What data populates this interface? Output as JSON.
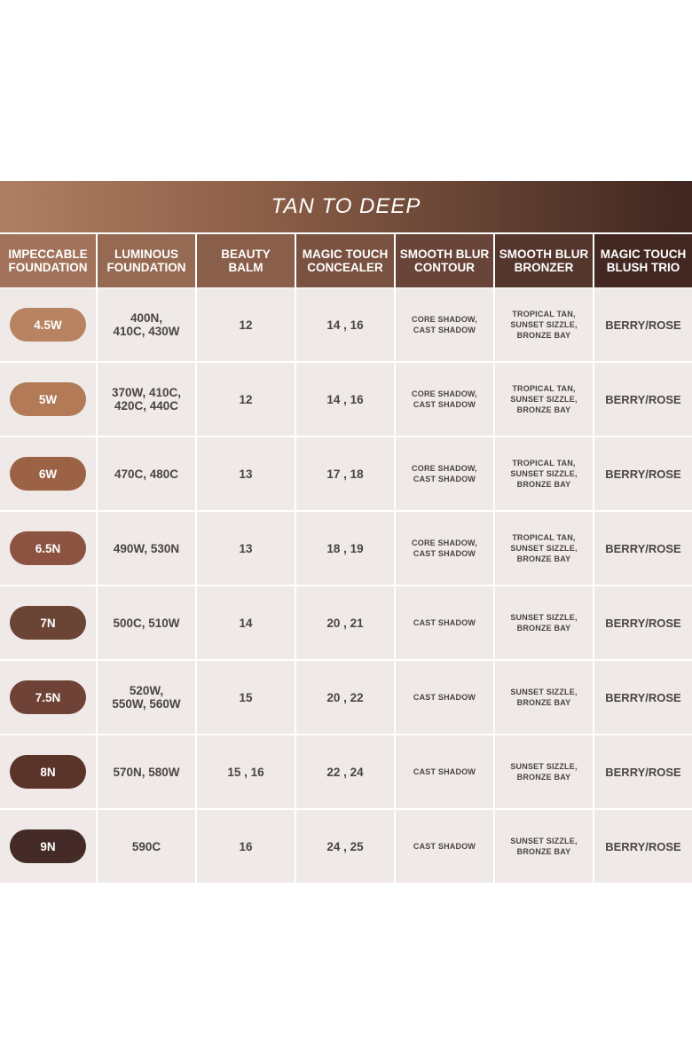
{
  "banner": {
    "title": "TAN TO DEEP"
  },
  "columns": [
    {
      "label": "IMPECCABLE\nFOUNDATION",
      "color": "#a2735a"
    },
    {
      "label": "LUMINOUS\nFOUNDATION",
      "color": "#966a52"
    },
    {
      "label": "BEAUTY\nBALM",
      "color": "#895f4b"
    },
    {
      "label": "MAGIC TOUCH\nCONCEALER",
      "color": "#7a5241"
    },
    {
      "label": "SMOOTH BLUR\nCONTOUR",
      "color": "#684538"
    },
    {
      "label": "SMOOTH BLUR\nBRONZER",
      "color": "#55362c"
    },
    {
      "label": "MAGIC TOUCH\nBLUSH TRIO",
      "color": "#432822"
    }
  ],
  "rows": [
    {
      "shade": "4.5W",
      "shade_color": "#b88361",
      "luminous": "400N,\n410C, 430W",
      "balm": "12",
      "concealer": "14 , 16",
      "contour": "CORE SHADOW,\nCAST SHADOW",
      "bronzer": "TROPICAL TAN,\nSUNSET SIZZLE,\nBRONZE BAY",
      "blush": "BERRY/ROSE"
    },
    {
      "shade": "5W",
      "shade_color": "#b27a57",
      "luminous": "370W, 410C,\n420C, 440C",
      "balm": "12",
      "concealer": "14 , 16",
      "contour": "CORE SHADOW,\nCAST SHADOW",
      "bronzer": "TROPICAL TAN,\nSUNSET SIZZLE,\nBRONZE BAY",
      "blush": "BERRY/ROSE"
    },
    {
      "shade": "6W",
      "shade_color": "#9c6245",
      "luminous": "470C, 480C",
      "balm": "13",
      "concealer": "17 , 18",
      "contour": "CORE SHADOW,\nCAST SHADOW",
      "bronzer": "TROPICAL TAN,\nSUNSET SIZZLE,\nBRONZE BAY",
      "blush": "BERRY/ROSE"
    },
    {
      "shade": "6.5N",
      "shade_color": "#8c5340",
      "luminous": "490W, 530N",
      "balm": "13",
      "concealer": "18 , 19",
      "contour": "CORE SHADOW,\nCAST SHADOW",
      "bronzer": "TROPICAL TAN,\nSUNSET SIZZLE,\nBRONZE BAY",
      "blush": "BERRY/ROSE"
    },
    {
      "shade": "7N",
      "shade_color": "#6a4536",
      "luminous": "500C, 510W",
      "balm": "14",
      "concealer": "20 , 21",
      "contour": "CAST SHADOW",
      "bronzer": "SUNSET SIZZLE,\nBRONZE BAY",
      "blush": "BERRY/ROSE"
    },
    {
      "shade": "7.5N",
      "shade_color": "#6e4236",
      "luminous": "520W,\n550W, 560W",
      "balm": "15",
      "concealer": "20 , 22",
      "contour": "CAST SHADOW",
      "bronzer": "SUNSET SIZZLE,\nBRONZE BAY",
      "blush": "BERRY/ROSE"
    },
    {
      "shade": "8N",
      "shade_color": "#5a3329",
      "luminous": "570N, 580W",
      "balm": "15 , 16",
      "concealer": "22 , 24",
      "contour": "CAST SHADOW",
      "bronzer": "SUNSET SIZZLE,\nBRONZE BAY",
      "blush": "BERRY/ROSE"
    },
    {
      "shade": "9N",
      "shade_color": "#452b27",
      "luminous": "590C",
      "balm": "16",
      "concealer": "24 , 25",
      "contour": "CAST SHADOW",
      "bronzer": "SUNSET SIZZLE,\nBRONZE BAY",
      "blush": "BERRY/ROSE"
    }
  ]
}
